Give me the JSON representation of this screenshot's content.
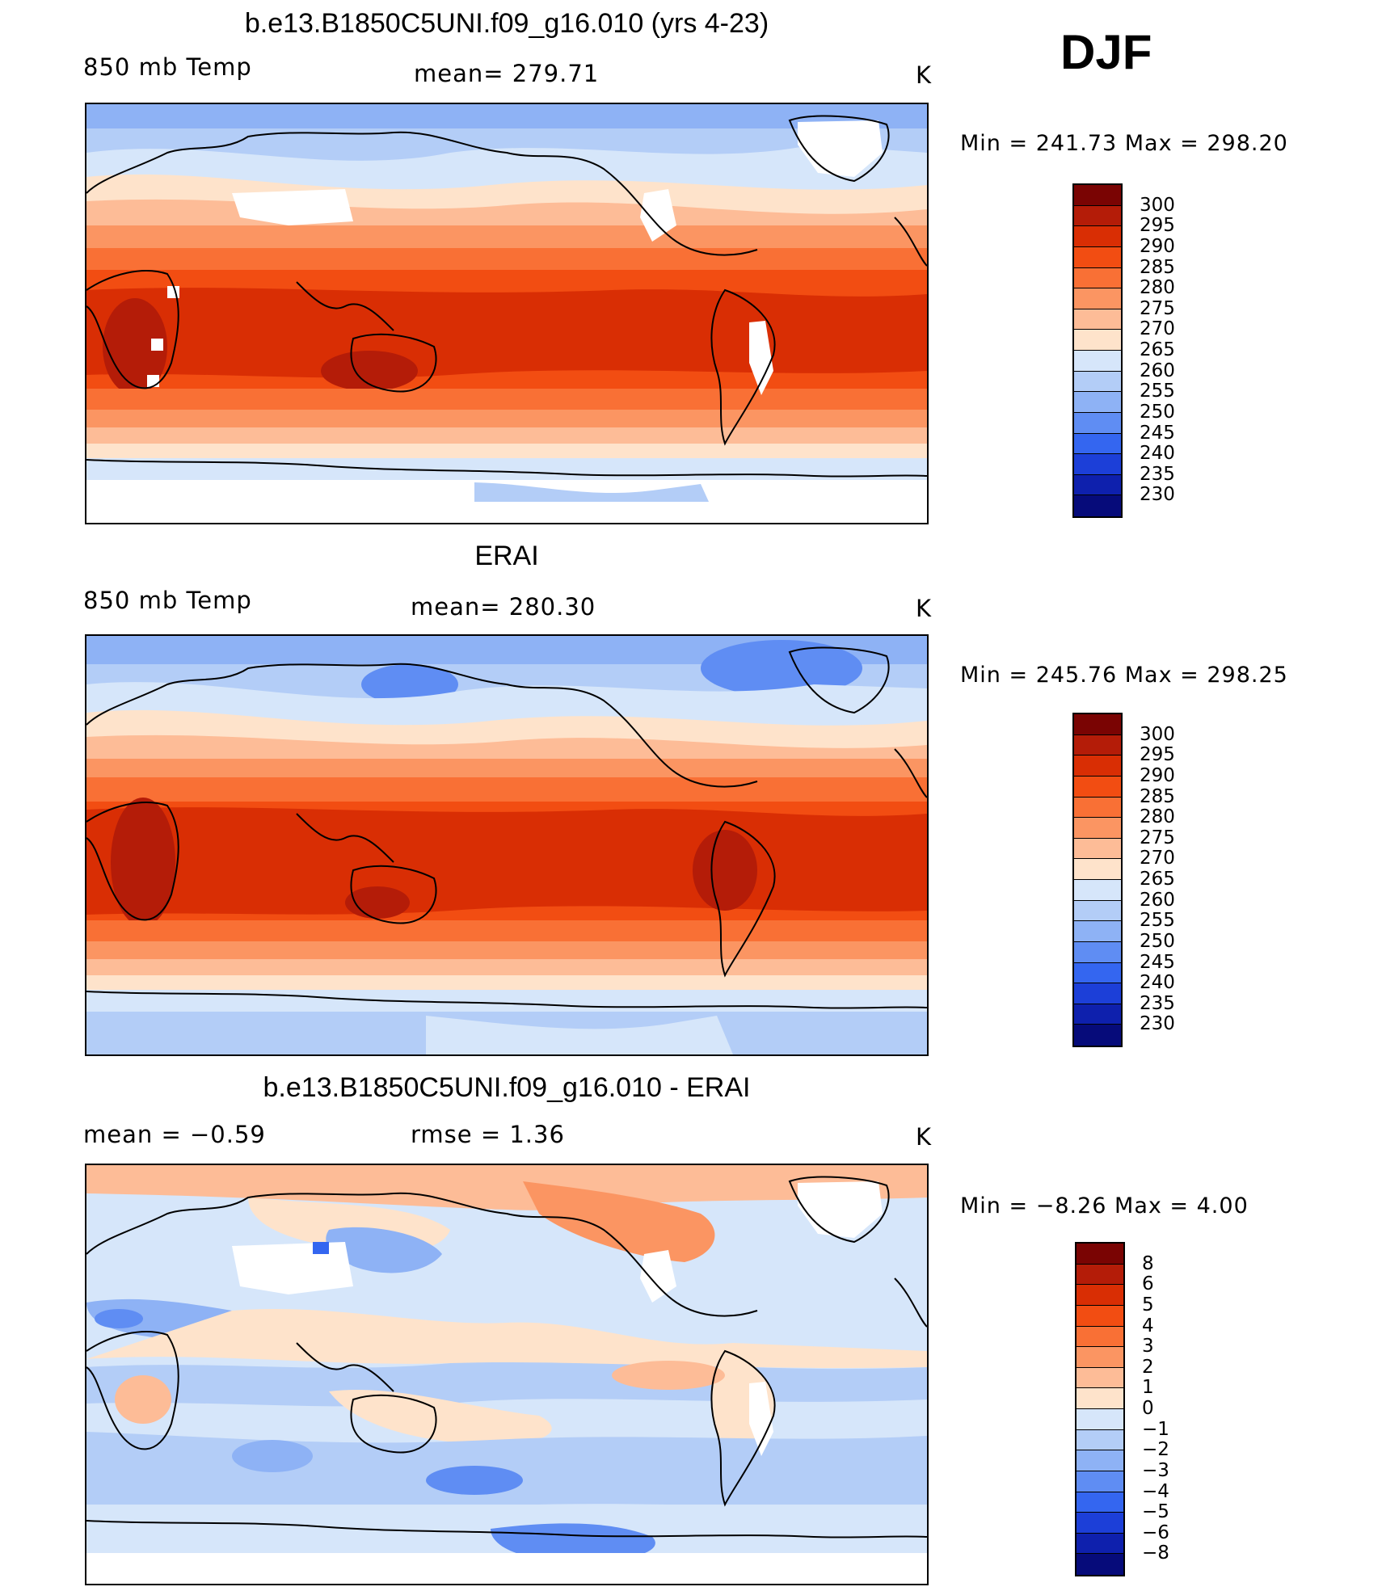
{
  "season": "DJF",
  "units": "K",
  "panels": [
    {
      "title": "b.e13.B1850C5UNI.f09_g16.010 (yrs 4-23)",
      "left_label": "850 mb Temp",
      "center_label": "mean= 279.71",
      "right_label": "K",
      "minmax": "Min = 241.73 Max = 298.20",
      "colorbar": {
        "ticks": [
          "300",
          "295",
          "290",
          "285",
          "280",
          "275",
          "270",
          "265",
          "260",
          "255",
          "250",
          "245",
          "240",
          "235",
          "230"
        ],
        "colors": [
          "#7a0403",
          "#b41c08",
          "#d92e04",
          "#f24d12",
          "#f97035",
          "#fb9562",
          "#fdbc97",
          "#fee3cb",
          "#d6e6fa",
          "#b3cdf7",
          "#8eb2f5",
          "#5f8df3",
          "#3466f0",
          "#1c3fd8",
          "#0e20ad",
          "#060b7a"
        ]
      }
    },
    {
      "title": "ERAI",
      "left_label": "850 mb Temp",
      "center_label": "mean= 280.30",
      "right_label": "K",
      "minmax": "Min = 245.76 Max = 298.25",
      "colorbar": {
        "ticks": [
          "300",
          "295",
          "290",
          "285",
          "280",
          "275",
          "270",
          "265",
          "260",
          "255",
          "250",
          "245",
          "240",
          "235",
          "230"
        ],
        "colors": [
          "#7a0403",
          "#b41c08",
          "#d92e04",
          "#f24d12",
          "#f97035",
          "#fb9562",
          "#fdbc97",
          "#fee3cb",
          "#d6e6fa",
          "#b3cdf7",
          "#8eb2f5",
          "#5f8df3",
          "#3466f0",
          "#1c3fd8",
          "#0e20ad",
          "#060b7a"
        ]
      }
    },
    {
      "title": "b.e13.B1850C5UNI.f09_g16.010 - ERAI",
      "left_label": "mean =   −0.59",
      "center_label": "rmse =    1.36",
      "right_label": "K",
      "minmax": "Min =  −8.26 Max =    4.00",
      "colorbar": {
        "ticks": [
          "8",
          "6",
          "5",
          "4",
          "3",
          "2",
          "1",
          "0",
          "−1",
          "−2",
          "−3",
          "−4",
          "−5",
          "−6",
          "−8"
        ],
        "colors": [
          "#7a0403",
          "#b41c08",
          "#d92e04",
          "#f24d12",
          "#f97035",
          "#fb9562",
          "#fdbc97",
          "#fee3cb",
          "#d6e6fa",
          "#b3cdf7",
          "#8eb2f5",
          "#5f8df3",
          "#3466f0",
          "#1c3fd8",
          "#0e20ad",
          "#060b7a"
        ]
      }
    }
  ]
}
